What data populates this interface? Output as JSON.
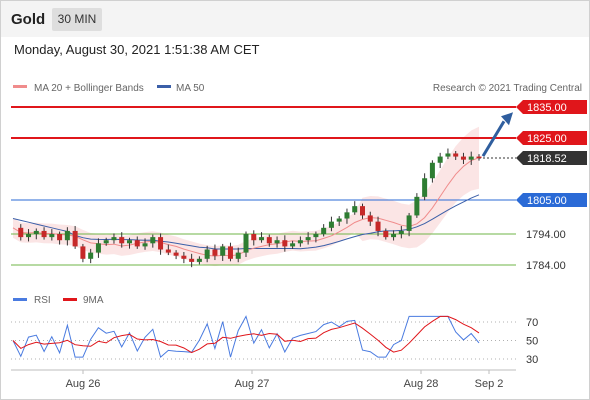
{
  "header": {
    "instrument": "Gold",
    "timeframe": "30 MIN"
  },
  "timestamp": "Monday, August 30, 2021 1:51:38 AM CET",
  "legend": {
    "ma20": "MA 20 + Bollinger Bands",
    "ma50": "MA 50",
    "source": "Research © 2021 Trading Central"
  },
  "rsi_legend": {
    "rsi": "RSI",
    "ma9": "9MA"
  },
  "colors": {
    "resistance": "#e0161b",
    "pivot": "#2a6ad6",
    "support": "#6fb547",
    "ma20": "#f08c8c",
    "ma50": "#3b5fa8",
    "band": "#fadcdc",
    "arrow": "#2f5e9e",
    "last": "#333333"
  },
  "chart_data": [
    {
      "type": "candlestick",
      "title": "Gold",
      "x_tick_labels": [
        "Aug 26",
        "Aug 27",
        "Aug 28",
        "Sep 2"
      ],
      "ylim": [
        1778,
        1838
      ],
      "levels": [
        {
          "label": "1835.00",
          "value": 1835.0,
          "kind": "resistance"
        },
        {
          "label": "1825.00",
          "value": 1825.0,
          "kind": "resistance"
        },
        {
          "label": "1818.52",
          "value": 1818.52,
          "kind": "last"
        },
        {
          "label": "1805.00",
          "value": 1805.0,
          "kind": "pivot"
        },
        {
          "label": "1794.00",
          "value": 1794.0,
          "kind": "support"
        },
        {
          "label": "1784.00",
          "value": 1784.0,
          "kind": "support"
        }
      ],
      "close_path": [
        1796,
        1793,
        1794,
        1795,
        1793,
        1794,
        1792,
        1795,
        1790,
        1786,
        1788,
        1791,
        1792,
        1793,
        1791,
        1792,
        1790,
        1791,
        1793,
        1789,
        1788,
        1787,
        1786,
        1785,
        1786,
        1789,
        1787,
        1790,
        1786,
        1788,
        1794,
        1792,
        1793,
        1791,
        1792,
        1790,
        1791,
        1792,
        1793,
        1794,
        1796,
        1798,
        1799,
        1801,
        1803,
        1800,
        1798,
        1795,
        1793,
        1794,
        1795,
        1800,
        1806,
        1812,
        1817,
        1819,
        1820,
        1819,
        1818,
        1819,
        1818.5
      ],
      "target": 1832,
      "series": [
        {
          "name": "MA 20 + Bollinger Bands"
        },
        {
          "name": "MA 50"
        }
      ]
    },
    {
      "type": "line",
      "yticks": [
        70,
        50,
        30
      ],
      "ylim": [
        20,
        80
      ],
      "series": [
        {
          "name": "RSI"
        },
        {
          "name": "9MA"
        }
      ]
    }
  ]
}
